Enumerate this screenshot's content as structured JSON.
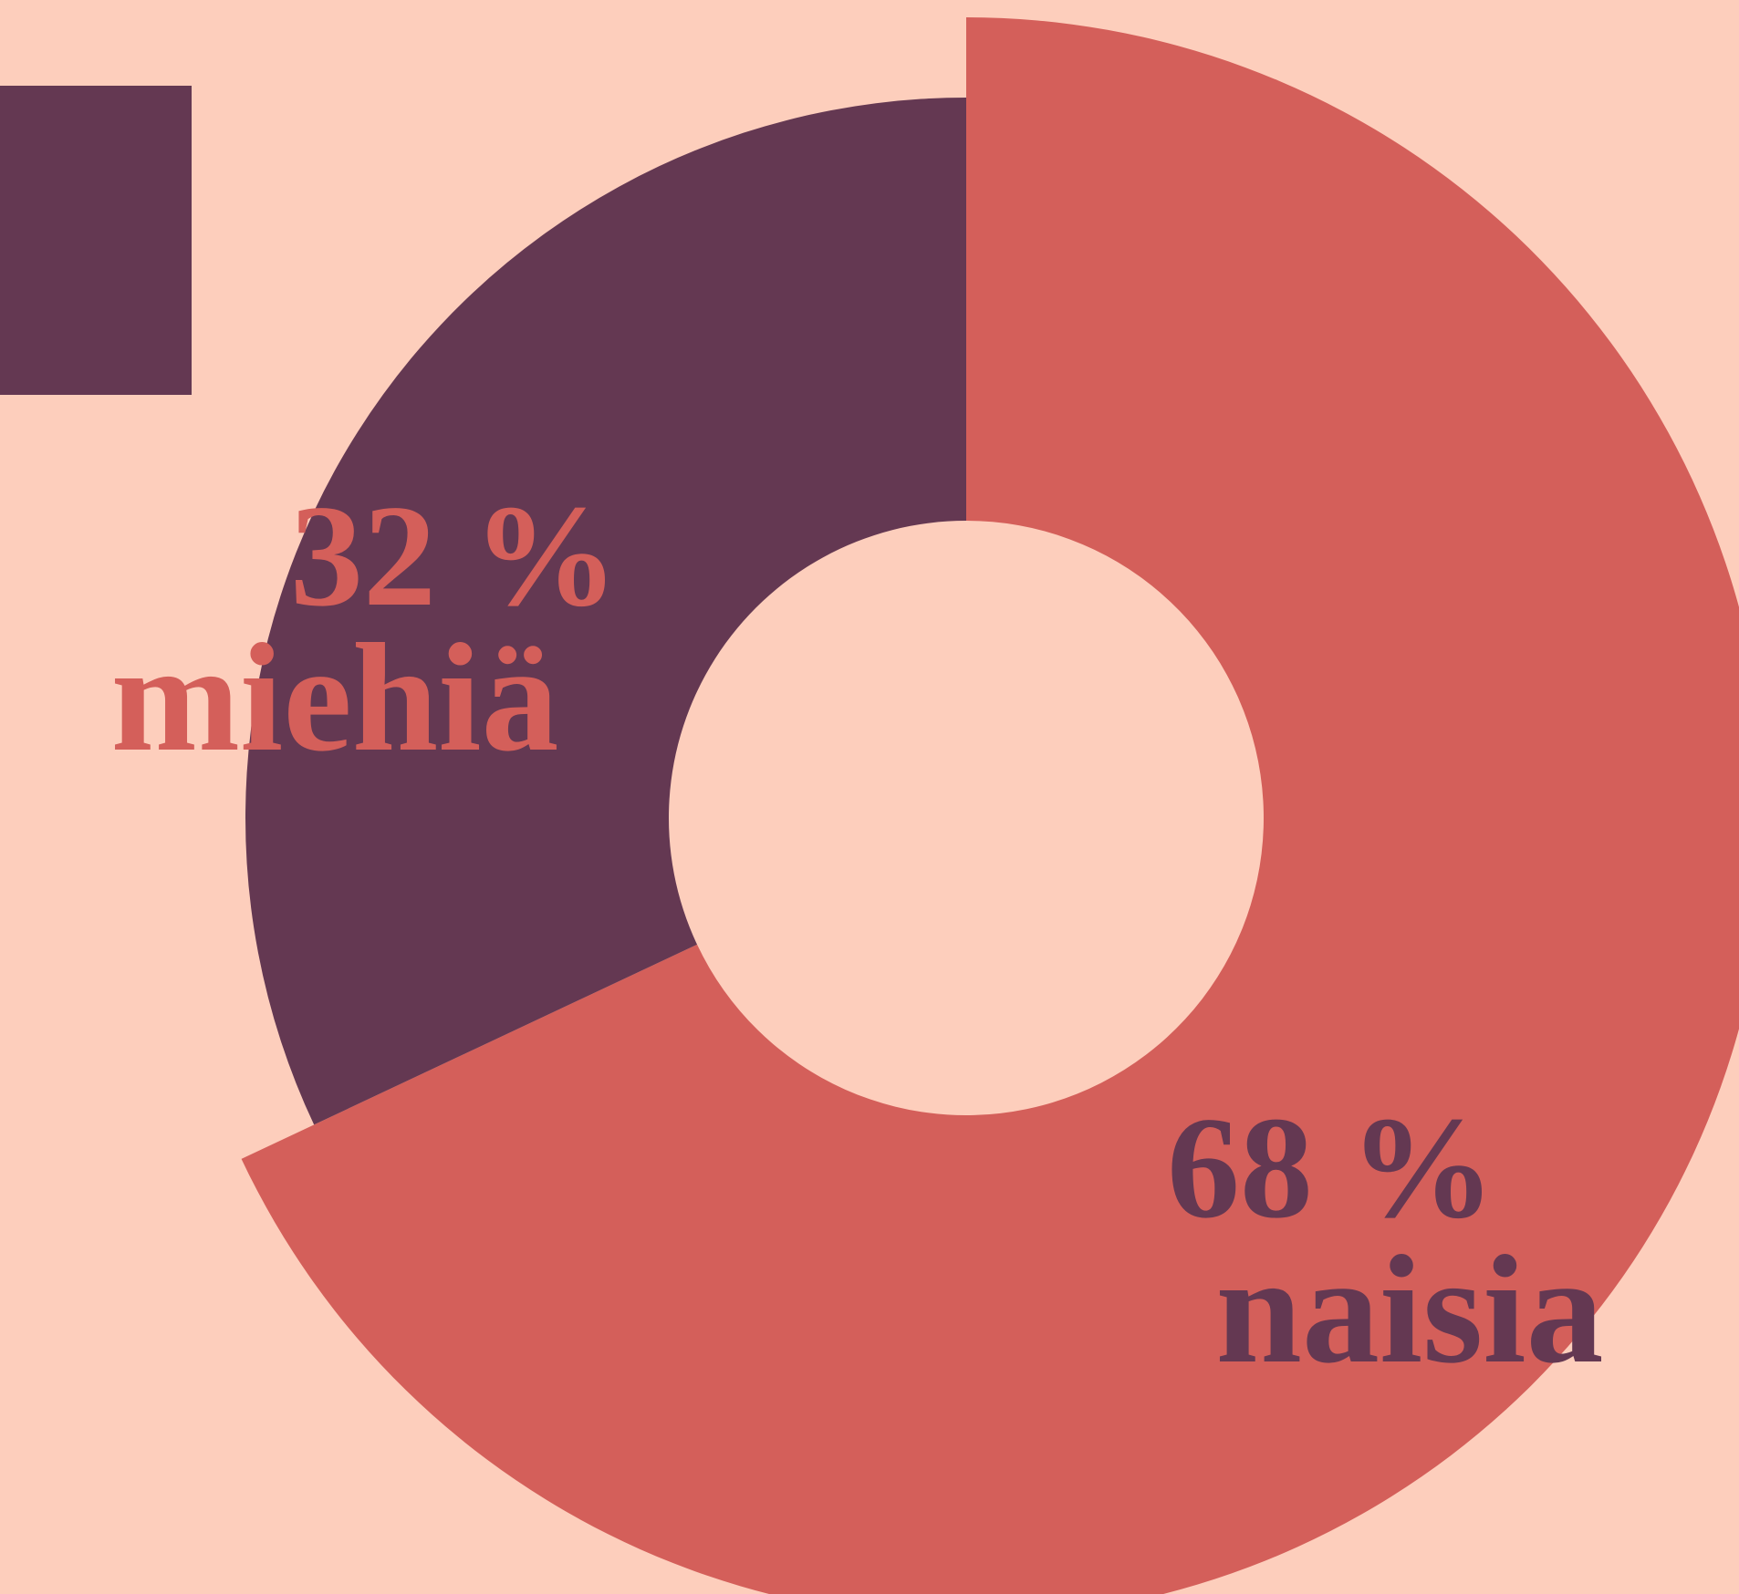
{
  "chart_data": {
    "type": "pie",
    "categories": [
      "naisia",
      "miehiä"
    ],
    "values": [
      68,
      32
    ],
    "value_labels": [
      "68 %",
      "32 %"
    ],
    "colors": [
      "#d45f5a",
      "#643852"
    ]
  }
}
